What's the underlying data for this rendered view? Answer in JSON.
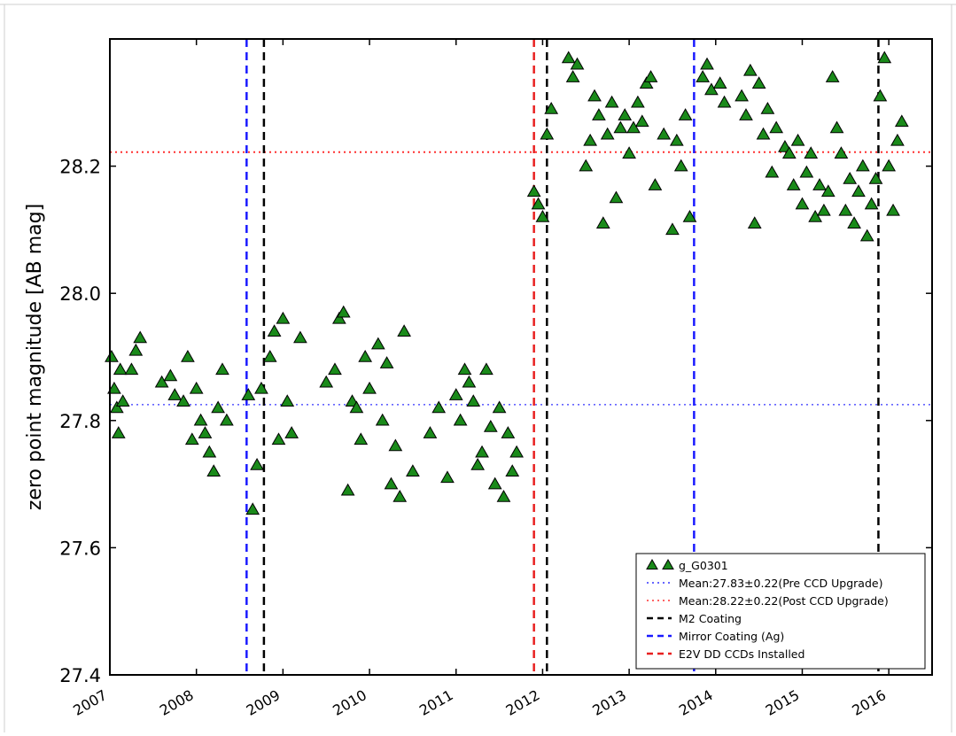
{
  "chart_data": {
    "type": "scatter",
    "title": "",
    "xlabel": "",
    "ylabel": "zero point magnitude [AB mag]",
    "xlim": [
      2007.0,
      2016.5
    ],
    "ylim": [
      27.4,
      28.4
    ],
    "x_ticks": [
      2007,
      2008,
      2009,
      2010,
      2011,
      2012,
      2013,
      2014,
      2015,
      2016
    ],
    "x_tick_labels": [
      "2007",
      "2008",
      "2009",
      "2010",
      "2011",
      "2012",
      "2013",
      "2014",
      "2015",
      "2016"
    ],
    "y_ticks": [
      27.4,
      27.6,
      27.8,
      28.0,
      28.2
    ],
    "y_tick_labels": [
      "27.4",
      "27.6",
      "27.8",
      "28.0",
      "28.2"
    ],
    "grid": false,
    "legend_position": "lower-right",
    "marker_color": "#1a8a1a",
    "series": [
      {
        "name": "g_G0301",
        "marker": "triangle",
        "points": [
          [
            2007.02,
            27.9
          ],
          [
            2007.05,
            27.85
          ],
          [
            2007.08,
            27.82
          ],
          [
            2007.1,
            27.78
          ],
          [
            2007.12,
            27.88
          ],
          [
            2007.15,
            27.83
          ],
          [
            2007.25,
            27.88
          ],
          [
            2007.3,
            27.91
          ],
          [
            2007.35,
            27.93
          ],
          [
            2007.6,
            27.86
          ],
          [
            2007.7,
            27.87
          ],
          [
            2007.75,
            27.84
          ],
          [
            2007.85,
            27.83
          ],
          [
            2007.9,
            27.9
          ],
          [
            2007.95,
            27.77
          ],
          [
            2008.0,
            27.85
          ],
          [
            2008.05,
            27.8
          ],
          [
            2008.1,
            27.78
          ],
          [
            2008.15,
            27.75
          ],
          [
            2008.2,
            27.72
          ],
          [
            2008.25,
            27.82
          ],
          [
            2008.3,
            27.88
          ],
          [
            2008.35,
            27.8
          ],
          [
            2008.6,
            27.84
          ],
          [
            2008.65,
            27.66
          ],
          [
            2008.7,
            27.73
          ],
          [
            2008.75,
            27.85
          ],
          [
            2008.85,
            27.9
          ],
          [
            2008.9,
            27.94
          ],
          [
            2008.95,
            27.77
          ],
          [
            2009.0,
            27.96
          ],
          [
            2009.05,
            27.83
          ],
          [
            2009.1,
            27.78
          ],
          [
            2009.2,
            27.93
          ],
          [
            2009.5,
            27.86
          ],
          [
            2009.6,
            27.88
          ],
          [
            2009.65,
            27.96
          ],
          [
            2009.7,
            27.97
          ],
          [
            2009.75,
            27.69
          ],
          [
            2009.8,
            27.83
          ],
          [
            2009.85,
            27.82
          ],
          [
            2009.9,
            27.77
          ],
          [
            2009.95,
            27.9
          ],
          [
            2010.0,
            27.85
          ],
          [
            2010.1,
            27.92
          ],
          [
            2010.15,
            27.8
          ],
          [
            2010.2,
            27.89
          ],
          [
            2010.25,
            27.7
          ],
          [
            2010.3,
            27.76
          ],
          [
            2010.35,
            27.68
          ],
          [
            2010.4,
            27.94
          ],
          [
            2010.5,
            27.72
          ],
          [
            2010.7,
            27.78
          ],
          [
            2010.8,
            27.82
          ],
          [
            2010.9,
            27.71
          ],
          [
            2011.0,
            27.84
          ],
          [
            2011.05,
            27.8
          ],
          [
            2011.1,
            27.88
          ],
          [
            2011.15,
            27.86
          ],
          [
            2011.2,
            27.83
          ],
          [
            2011.25,
            27.73
          ],
          [
            2011.3,
            27.75
          ],
          [
            2011.35,
            27.88
          ],
          [
            2011.4,
            27.79
          ],
          [
            2011.45,
            27.7
          ],
          [
            2011.5,
            27.82
          ],
          [
            2011.55,
            27.68
          ],
          [
            2011.6,
            27.78
          ],
          [
            2011.65,
            27.72
          ],
          [
            2011.7,
            27.75
          ],
          [
            2011.9,
            28.16
          ],
          [
            2011.95,
            28.14
          ],
          [
            2012.0,
            28.12
          ],
          [
            2012.05,
            28.25
          ],
          [
            2012.1,
            28.29
          ],
          [
            2012.3,
            28.37
          ],
          [
            2012.35,
            28.34
          ],
          [
            2012.4,
            28.36
          ],
          [
            2012.5,
            28.2
          ],
          [
            2012.55,
            28.24
          ],
          [
            2012.6,
            28.31
          ],
          [
            2012.65,
            28.28
          ],
          [
            2012.7,
            28.11
          ],
          [
            2012.75,
            28.25
          ],
          [
            2012.8,
            28.3
          ],
          [
            2012.85,
            28.15
          ],
          [
            2012.9,
            28.26
          ],
          [
            2012.95,
            28.28
          ],
          [
            2013.0,
            28.22
          ],
          [
            2013.05,
            28.26
          ],
          [
            2013.1,
            28.3
          ],
          [
            2013.15,
            28.27
          ],
          [
            2013.2,
            28.33
          ],
          [
            2013.25,
            28.34
          ],
          [
            2013.3,
            28.17
          ],
          [
            2013.4,
            28.25
          ],
          [
            2013.5,
            28.1
          ],
          [
            2013.55,
            28.24
          ],
          [
            2013.6,
            28.2
          ],
          [
            2013.65,
            28.28
          ],
          [
            2013.7,
            28.12
          ],
          [
            2013.85,
            28.34
          ],
          [
            2013.9,
            28.36
          ],
          [
            2013.95,
            28.32
          ],
          [
            2014.05,
            28.33
          ],
          [
            2014.1,
            28.3
          ],
          [
            2014.3,
            28.31
          ],
          [
            2014.35,
            28.28
          ],
          [
            2014.4,
            28.35
          ],
          [
            2014.45,
            28.11
          ],
          [
            2014.5,
            28.33
          ],
          [
            2014.55,
            28.25
          ],
          [
            2014.6,
            28.29
          ],
          [
            2014.65,
            28.19
          ],
          [
            2014.7,
            28.26
          ],
          [
            2014.8,
            28.23
          ],
          [
            2014.85,
            28.22
          ],
          [
            2014.9,
            28.17
          ],
          [
            2014.95,
            28.24
          ],
          [
            2015.0,
            28.14
          ],
          [
            2015.05,
            28.19
          ],
          [
            2015.1,
            28.22
          ],
          [
            2015.15,
            28.12
          ],
          [
            2015.2,
            28.17
          ],
          [
            2015.25,
            28.13
          ],
          [
            2015.3,
            28.16
          ],
          [
            2015.35,
            28.34
          ],
          [
            2015.4,
            28.26
          ],
          [
            2015.45,
            28.22
          ],
          [
            2015.5,
            28.13
          ],
          [
            2015.55,
            28.18
          ],
          [
            2015.6,
            28.11
          ],
          [
            2015.65,
            28.16
          ],
          [
            2015.7,
            28.2
          ],
          [
            2015.75,
            28.09
          ],
          [
            2015.8,
            28.14
          ],
          [
            2015.85,
            28.18
          ],
          [
            2015.9,
            28.31
          ],
          [
            2015.95,
            28.37
          ],
          [
            2016.0,
            28.2
          ],
          [
            2016.05,
            28.13
          ],
          [
            2016.1,
            28.24
          ],
          [
            2016.15,
            28.27
          ]
        ]
      }
    ],
    "reference_lines": [
      {
        "name": "Mean:27.83±0.22(Pre CCD Upgrade)",
        "orientation": "horizontal",
        "value": 27.825,
        "style": "dotted",
        "color": "#3333ff"
      },
      {
        "name": "Mean:28.22±0.22(Post CCD Upgrade)",
        "orientation": "horizontal",
        "value": 28.222,
        "style": "dotted",
        "color": "#ff3030"
      }
    ],
    "event_lines": [
      {
        "name": "M2 Coating",
        "style": "dashed",
        "color": "#000000",
        "x": [
          2008.78,
          2012.05,
          2015.88
        ]
      },
      {
        "name": "Mirror Coating (Ag)",
        "style": "dashed",
        "color": "#1a1aff",
        "x": [
          2008.58,
          2013.75
        ]
      },
      {
        "name": "E2V DD CCDs Installed",
        "style": "dashed",
        "color": "#e82020",
        "x": [
          2011.9
        ]
      }
    ]
  }
}
